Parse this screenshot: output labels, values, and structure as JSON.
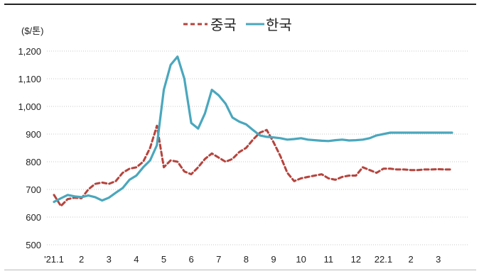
{
  "chart_data": {
    "type": "line",
    "title": "",
    "ylabel": "($/톤)",
    "xlabel": "",
    "ylim": [
      500,
      1200
    ],
    "yticks": [
      "1,200",
      "1,100",
      "1,000",
      "900",
      "800",
      "700",
      "600",
      "500"
    ],
    "ytick_values": [
      1200,
      1100,
      1000,
      900,
      800,
      700,
      600,
      500
    ],
    "xticks": [
      "'21.1",
      "2",
      "3",
      "4",
      "5",
      "6",
      "7",
      "8",
      "9",
      "10",
      "11",
      "12",
      "22.1",
      "2",
      "3"
    ],
    "grid": true,
    "legend_position": "top-center",
    "x": [
      0,
      0.25,
      0.5,
      0.75,
      1,
      1.25,
      1.5,
      1.75,
      2,
      2.25,
      2.5,
      2.75,
      3,
      3.25,
      3.5,
      3.75,
      4,
      4.25,
      4.5,
      4.75,
      5,
      5.25,
      5.5,
      5.75,
      6,
      6.25,
      6.5,
      6.75,
      7,
      7.25,
      7.5,
      7.75,
      8,
      8.25,
      8.5,
      8.75,
      9,
      9.25,
      9.5,
      9.75,
      10,
      10.25,
      10.5,
      10.75,
      11,
      11.25,
      11.5,
      11.75,
      12,
      12.25,
      12.5,
      12.75,
      13,
      13.25,
      13.5,
      13.75,
      14,
      14.25,
      14.5
    ],
    "series": [
      {
        "name": "중국",
        "color": "#b5443d",
        "dash": true,
        "values": [
          680,
          640,
          665,
          670,
          668,
          700,
          720,
          725,
          720,
          730,
          760,
          775,
          780,
          800,
          850,
          930,
          780,
          805,
          800,
          765,
          755,
          780,
          810,
          830,
          815,
          800,
          810,
          835,
          850,
          880,
          905,
          915,
          870,
          820,
          760,
          730,
          740,
          745,
          750,
          755,
          740,
          735,
          745,
          750,
          750,
          780,
          770,
          760,
          775,
          775,
          772,
          772,
          770,
          770,
          772,
          772,
          773,
          772,
          772
        ]
      },
      {
        "name": "한국",
        "color": "#4aa7bd",
        "dash": false,
        "values": [
          655,
          668,
          680,
          675,
          672,
          678,
          672,
          660,
          670,
          688,
          705,
          735,
          750,
          780,
          805,
          860,
          1060,
          1150,
          1180,
          1100,
          940,
          920,
          975,
          1060,
          1040,
          1010,
          960,
          945,
          935,
          915,
          895,
          890,
          888,
          885,
          880,
          882,
          885,
          880,
          878,
          876,
          875,
          878,
          880,
          877,
          878,
          880,
          885,
          895,
          900,
          905,
          905,
          905,
          905,
          905,
          905,
          905,
          905,
          905,
          905
        ]
      }
    ]
  }
}
